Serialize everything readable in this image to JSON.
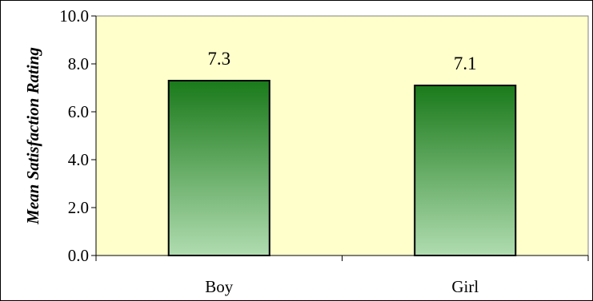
{
  "chart_data": {
    "type": "bar",
    "title": "",
    "xlabel": "",
    "ylabel": "Mean Satisfaction Rating",
    "categories": [
      "Boy",
      "Girl"
    ],
    "values": [
      7.3,
      7.1
    ],
    "data_labels": [
      "7.3",
      "7.1"
    ],
    "ylim": [
      0,
      10
    ],
    "yticks": [
      0,
      2,
      4,
      6,
      8,
      10
    ],
    "ytick_labels": [
      "0.0",
      "2.0",
      "4.0",
      "6.0",
      "8.0",
      "10.0"
    ],
    "grid": false,
    "legend": "none",
    "colors": {
      "plot_background": "#ffffcc",
      "bar_top": "#1a7a1a",
      "bar_bottom": "#b0dcb0",
      "bar_edge": "#000000",
      "axis": "#000000"
    }
  }
}
